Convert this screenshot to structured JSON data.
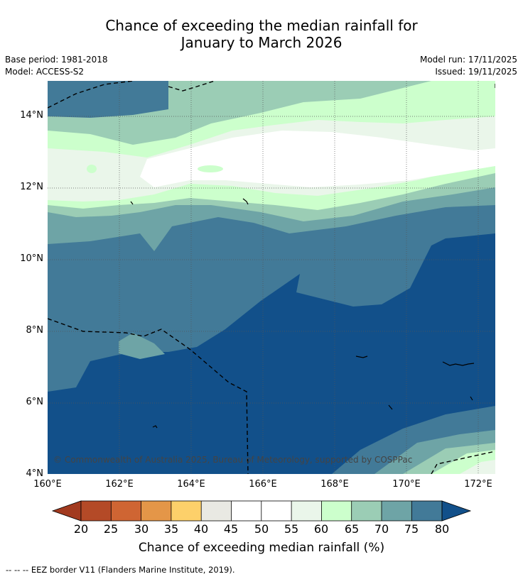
{
  "title": {
    "line1": "Chance of exceeding the median rainfall for",
    "line2": "January to March 2026"
  },
  "meta": {
    "base_period": "Base period: 1981-2018",
    "model": "Model: ACCESS-S2",
    "model_run": "Model run: 17/11/2025",
    "issued": "Issued: 19/11/2025"
  },
  "map": {
    "copyright": "© Commonwealth of Australia 2025, Bureau of Meteorology, supported by COSPPac",
    "y_ticks": [
      "14°N",
      "12°N",
      "10°N",
      "8°N",
      "6°N",
      "4°N"
    ],
    "x_ticks": [
      "160°E",
      "162°E",
      "164°E",
      "166°E",
      "168°E",
      "170°E",
      "172°E"
    ]
  },
  "colorbar": {
    "title": "Chance of exceeding median rainfall (%)",
    "labels": [
      "20",
      "25",
      "30",
      "35",
      "40",
      "45",
      "50",
      "55",
      "60",
      "65",
      "70",
      "75",
      "80"
    ],
    "colors": {
      "below_20": "#a23a1f",
      "20_25": "#b44a27",
      "25_30": "#cf6533",
      "30_35": "#e49648",
      "35_40": "#fdd06a",
      "40_45": "#e9e9e3",
      "45_50": "#ffffff",
      "50_55": "#ffffff",
      "55_60": "#eaf6ea",
      "60_65": "#ccffcc",
      "65_70": "#9bcdb5",
      "70_75": "#6ea4a6",
      "75_80": "#427a98",
      "above_80": "#12508a"
    }
  },
  "footer": "--  --  -- EEZ border V11 (Flanders Marine Institute, 2019)."
}
